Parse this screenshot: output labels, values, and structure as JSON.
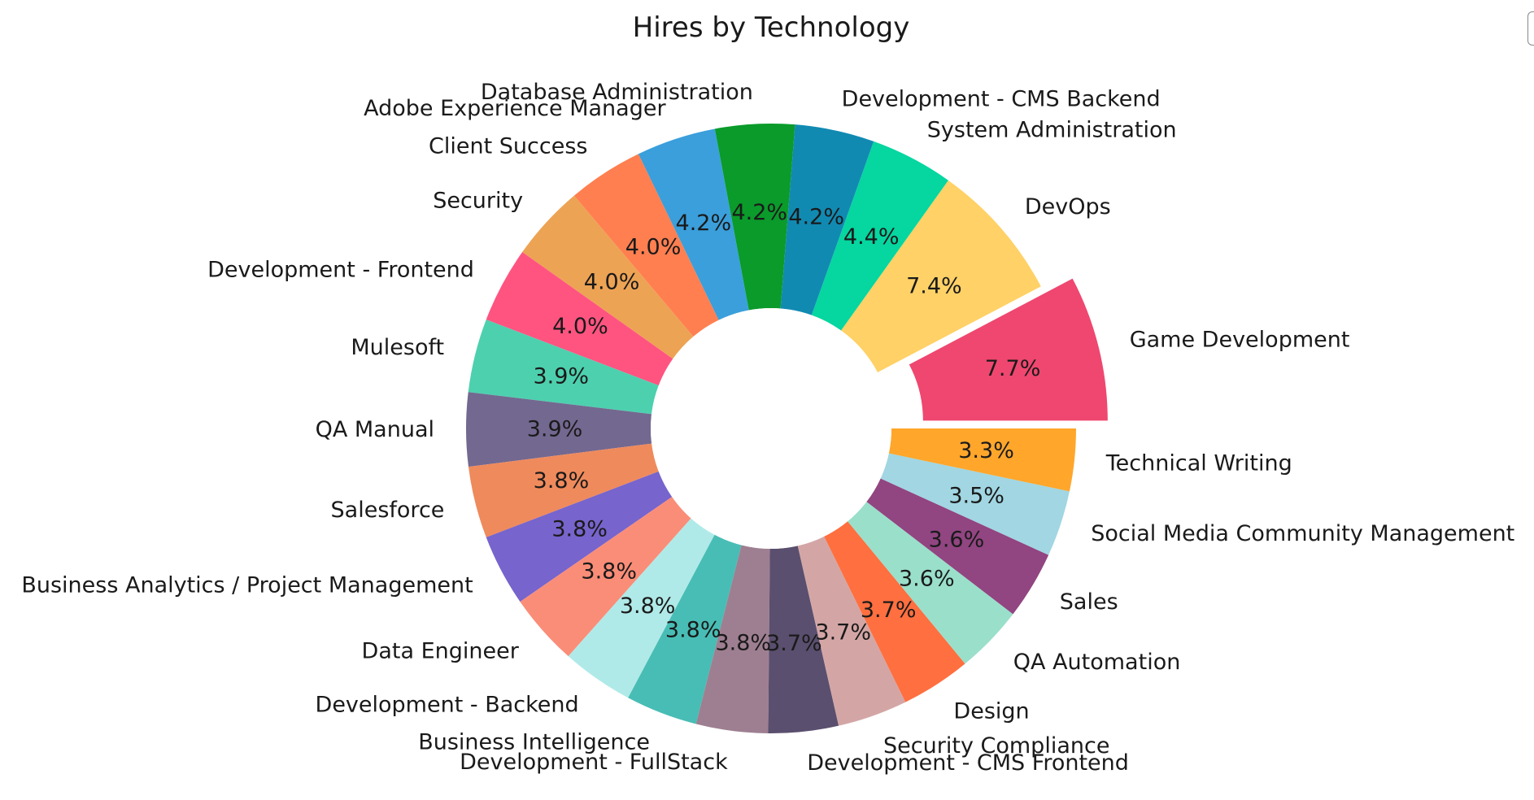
{
  "chart_data": {
    "type": "pie",
    "title": "Hires by Technology",
    "donut": true,
    "start_angle_deg": 0,
    "direction": "counterclockwise",
    "exploded": [
      "Game Development"
    ],
    "slices": [
      {
        "label": "Game Development",
        "value": 7.7,
        "pct_label": "7.7%",
        "color": "#EF476F"
      },
      {
        "label": "DevOps",
        "value": 7.4,
        "pct_label": "7.4%",
        "color": "#FFD166"
      },
      {
        "label": "System Administration",
        "value": 4.4,
        "pct_label": "4.4%",
        "color": "#06D6A0"
      },
      {
        "label": "Development - CMS Backend",
        "value": 4.2,
        "pct_label": "4.2%",
        "color": "#118AB2"
      },
      {
        "label": "Database Administration",
        "value": 4.2,
        "pct_label": "4.2%",
        "color": "#0A9B2B"
      },
      {
        "label": "Adobe Experience Manager",
        "value": 4.2,
        "pct_label": "4.2%",
        "color": "#3A9FDB"
      },
      {
        "label": "Client Success",
        "value": 4.0,
        "pct_label": "4.0%",
        "color": "#FF7F50"
      },
      {
        "label": "Security",
        "value": 4.0,
        "pct_label": "4.0%",
        "color": "#EDA354"
      },
      {
        "label": "Development - Frontend",
        "value": 4.0,
        "pct_label": "4.0%",
        "color": "#FF5480"
      },
      {
        "label": "Mulesoft",
        "value": 3.9,
        "pct_label": "3.9%",
        "color": "#4DD0AE"
      },
      {
        "label": "QA Manual",
        "value": 3.9,
        "pct_label": "3.9%",
        "color": "#736890"
      },
      {
        "label": "Salesforce",
        "value": 3.8,
        "pct_label": "3.8%",
        "color": "#EF8A5C"
      },
      {
        "label": "Business Analytics / Project Management",
        "value": 3.8,
        "pct_label": "3.8%",
        "color": "#7764CC"
      },
      {
        "label": "Data Engineer",
        "value": 3.8,
        "pct_label": "3.8%",
        "color": "#FA8D78"
      },
      {
        "label": "Development - Backend",
        "value": 3.8,
        "pct_label": "3.8%",
        "color": "#B0EAE8"
      },
      {
        "label": "Business Intelligence",
        "value": 3.8,
        "pct_label": "3.8%",
        "color": "#48BDB5"
      },
      {
        "label": "Development - FullStack",
        "value": 3.8,
        "pct_label": "3.8%",
        "color": "#9E7F91"
      },
      {
        "label": "Development - CMS Frontend",
        "value": 3.7,
        "pct_label": "3.7%",
        "color": "#5A4F6E"
      },
      {
        "label": "Security Compliance",
        "value": 3.7,
        "pct_label": "3.7%",
        "color": "#D3A6A5"
      },
      {
        "label": "Design",
        "value": 3.7,
        "pct_label": "3.7%",
        "color": "#FF6F3F"
      },
      {
        "label": "QA Automation",
        "value": 3.6,
        "pct_label": "3.6%",
        "color": "#9ADFCA"
      },
      {
        "label": "Sales",
        "value": 3.6,
        "pct_label": "3.6%",
        "color": "#914581"
      },
      {
        "label": "Social Media Community Management",
        "value": 3.5,
        "pct_label": "3.5%",
        "color": "#A1D6E2"
      },
      {
        "label": "Technical Writing",
        "value": 3.3,
        "pct_label": "3.3%",
        "color": "#FFA62B"
      }
    ]
  }
}
